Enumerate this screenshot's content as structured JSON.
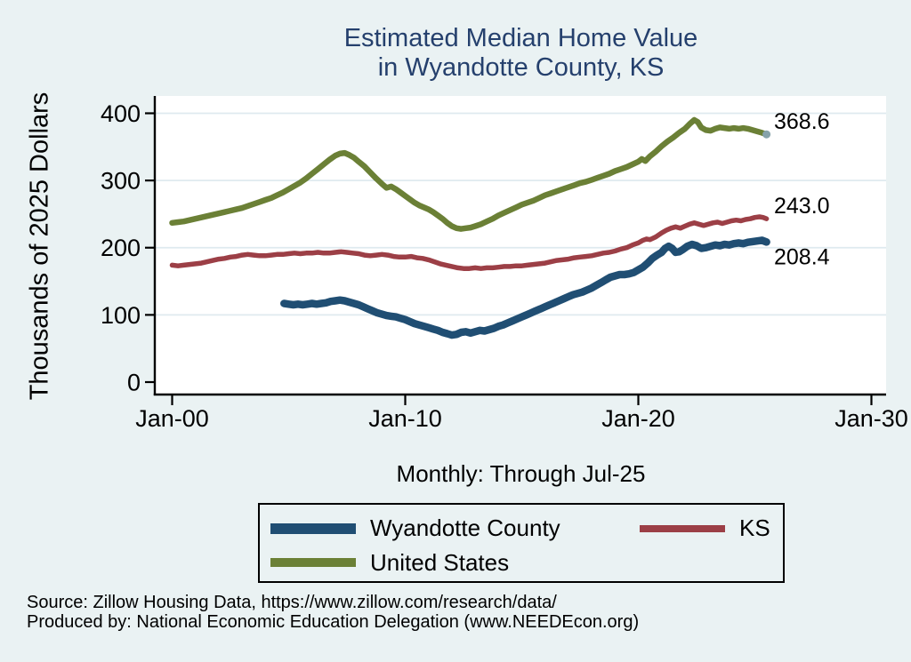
{
  "page": {
    "background": "#eaf2f3",
    "plot_background": "#ffffff",
    "gridline_color": "#dfeaef",
    "title_color": "#25406d"
  },
  "title": {
    "line1": "Estimated Median Home Value",
    "line2": "in Wyandotte County, KS"
  },
  "axes": {
    "y": {
      "title": "Thousands of 2025 Dollars",
      "ticks": [
        0,
        100,
        200,
        300,
        400
      ]
    },
    "x": {
      "subtitle": "Monthly: Through Jul-25",
      "ticks": [
        {
          "year": 2000,
          "label": "Jan-00"
        },
        {
          "year": 2010,
          "label": "Jan-10"
        },
        {
          "year": 2020,
          "label": "Jan-20"
        },
        {
          "year": 2030,
          "label": "Jan-30"
        }
      ]
    }
  },
  "chart_data": {
    "type": "line",
    "title": "Estimated Median Home Value in Wyandotte County, KS",
    "subtitle": "Monthly: Through Jul-25",
    "xlabel": "",
    "ylabel": "Thousands of 2025 Dollars",
    "ylim": [
      0,
      400
    ],
    "xlim_years": [
      2000,
      2030
    ],
    "grid": "horizontal",
    "legend_position": "bottom-box",
    "series": [
      {
        "name": "Wyandotte County",
        "color": "#204e73",
        "width": 8.5,
        "end_label": "208.4",
        "x": [
          2004.8,
          2005,
          2005.2,
          2005.4,
          2005.6,
          2005.8,
          2006,
          2006.2,
          2006.4,
          2006.6,
          2006.8,
          2007,
          2007.2,
          2007.4,
          2007.6,
          2007.8,
          2008,
          2008.2,
          2008.4,
          2008.6,
          2008.8,
          2009,
          2009.2,
          2009.4,
          2009.6,
          2009.8,
          2010,
          2010.2,
          2010.4,
          2010.6,
          2010.8,
          2011,
          2011.2,
          2011.4,
          2011.6,
          2011.8,
          2012,
          2012.2,
          2012.4,
          2012.6,
          2012.8,
          2013,
          2013.2,
          2013.4,
          2013.6,
          2013.8,
          2014,
          2014.2,
          2014.4,
          2014.6,
          2014.8,
          2015,
          2015.2,
          2015.4,
          2015.6,
          2015.8,
          2016,
          2016.2,
          2016.4,
          2016.6,
          2016.8,
          2017,
          2017.2,
          2017.4,
          2017.6,
          2017.8,
          2018,
          2018.2,
          2018.4,
          2018.6,
          2018.8,
          2019,
          2019.2,
          2019.4,
          2019.6,
          2019.8,
          2020,
          2020.2,
          2020.4,
          2020.6,
          2020.8,
          2021,
          2021.15,
          2021.3,
          2021.45,
          2021.6,
          2021.75,
          2021.9,
          2022.1,
          2022.3,
          2022.5,
          2022.7,
          2022.9,
          2023.1,
          2023.3,
          2023.5,
          2023.7,
          2023.9,
          2024.1,
          2024.3,
          2024.5,
          2024.7,
          2024.9,
          2025.1,
          2025.3,
          2025.5
        ],
        "values": [
          117,
          116,
          115,
          116,
          115,
          116,
          117,
          116,
          117,
          118,
          120,
          121,
          122,
          121,
          119,
          117,
          115,
          112,
          109,
          106,
          103,
          101,
          99,
          98,
          97,
          95,
          93,
          90,
          87,
          85,
          83,
          81,
          79,
          77,
          74,
          72,
          70,
          71,
          74,
          75,
          73,
          75,
          77,
          76,
          78,
          80,
          83,
          85,
          88,
          91,
          94,
          97,
          100,
          103,
          106,
          109,
          112,
          115,
          118,
          121,
          124,
          127,
          130,
          132,
          134,
          137,
          140,
          144,
          148,
          152,
          156,
          158,
          160,
          160,
          161,
          163,
          167,
          171,
          177,
          184,
          189,
          193,
          199,
          202,
          199,
          193,
          194,
          197,
          202,
          205,
          203,
          199,
          200,
          202,
          204,
          203,
          205,
          204,
          206,
          207,
          206,
          208,
          209,
          210,
          211,
          208.4
        ]
      },
      {
        "name": "KS",
        "color": "#9c3f46",
        "width": 5.5,
        "end_label": "243.0",
        "x": [
          2000,
          2000.25,
          2000.5,
          2000.75,
          2001,
          2001.25,
          2001.5,
          2001.75,
          2002,
          2002.25,
          2002.5,
          2002.75,
          2003,
          2003.25,
          2003.5,
          2003.75,
          2004,
          2004.25,
          2004.5,
          2004.75,
          2005,
          2005.25,
          2005.5,
          2005.75,
          2006,
          2006.25,
          2006.5,
          2006.75,
          2007,
          2007.25,
          2007.5,
          2007.75,
          2008,
          2008.25,
          2008.5,
          2008.75,
          2009,
          2009.25,
          2009.5,
          2009.75,
          2010,
          2010.25,
          2010.5,
          2010.75,
          2011,
          2011.25,
          2011.5,
          2011.75,
          2012,
          2012.25,
          2012.5,
          2012.75,
          2013,
          2013.25,
          2013.5,
          2013.75,
          2014,
          2014.25,
          2014.5,
          2014.75,
          2015,
          2015.25,
          2015.5,
          2015.75,
          2016,
          2016.25,
          2016.5,
          2016.75,
          2017,
          2017.25,
          2017.5,
          2017.75,
          2018,
          2018.25,
          2018.5,
          2018.75,
          2019,
          2019.25,
          2019.5,
          2019.75,
          2020,
          2020.2,
          2020.35,
          2020.5,
          2020.75,
          2021,
          2021.2,
          2021.4,
          2021.6,
          2021.8,
          2022,
          2022.2,
          2022.4,
          2022.6,
          2022.8,
          2023,
          2023.2,
          2023.4,
          2023.6,
          2023.8,
          2024,
          2024.2,
          2024.4,
          2024.6,
          2024.8,
          2025,
          2025.2,
          2025.35,
          2025.5
        ],
        "values": [
          174,
          173,
          174,
          175,
          176,
          177,
          179,
          181,
          183,
          184,
          186,
          187,
          189,
          190,
          189,
          188,
          188,
          189,
          190,
          190,
          191,
          192,
          191,
          192,
          192,
          193,
          192,
          192,
          193,
          194,
          193,
          192,
          191,
          189,
          188,
          189,
          190,
          189,
          187,
          186,
          186,
          187,
          185,
          184,
          182,
          179,
          176,
          174,
          172,
          170,
          169,
          169,
          170,
          169,
          170,
          170,
          171,
          172,
          172,
          173,
          173,
          174,
          175,
          176,
          177,
          179,
          181,
          182,
          183,
          185,
          186,
          187,
          188,
          190,
          192,
          193,
          195,
          198,
          200,
          204,
          207,
          211,
          213,
          212,
          216,
          222,
          226,
          229,
          231,
          229,
          232,
          235,
          237,
          235,
          233,
          235,
          237,
          238,
          236,
          238,
          240,
          241,
          240,
          242,
          243,
          245,
          246,
          245,
          243
        ]
      },
      {
        "name": "United States",
        "color": "#6b8036",
        "width": 6.5,
        "end_label": "368.6",
        "end_marker_color": "#86a2aa",
        "x": [
          2000,
          2000.25,
          2000.5,
          2000.75,
          2001,
          2001.25,
          2001.5,
          2001.75,
          2002,
          2002.25,
          2002.5,
          2002.75,
          2003,
          2003.25,
          2003.5,
          2003.75,
          2004,
          2004.25,
          2004.5,
          2004.75,
          2005,
          2005.25,
          2005.5,
          2005.75,
          2006,
          2006.25,
          2006.5,
          2006.75,
          2007,
          2007.2,
          2007.4,
          2007.6,
          2007.8,
          2008,
          2008.25,
          2008.5,
          2008.75,
          2009,
          2009.2,
          2009.4,
          2009.6,
          2009.8,
          2010,
          2010.2,
          2010.4,
          2010.6,
          2010.8,
          2011,
          2011.2,
          2011.4,
          2011.6,
          2011.8,
          2012,
          2012.2,
          2012.4,
          2012.6,
          2012.8,
          2013,
          2013.25,
          2013.5,
          2013.75,
          2014,
          2014.25,
          2014.5,
          2014.75,
          2015,
          2015.25,
          2015.5,
          2015.75,
          2016,
          2016.25,
          2016.5,
          2016.75,
          2017,
          2017.25,
          2017.5,
          2017.75,
          2018,
          2018.25,
          2018.5,
          2018.75,
          2019,
          2019.25,
          2019.5,
          2019.75,
          2020,
          2020.15,
          2020.3,
          2020.5,
          2020.75,
          2021,
          2021.25,
          2021.5,
          2021.75,
          2022,
          2022.2,
          2022.4,
          2022.55,
          2022.7,
          2022.9,
          2023.1,
          2023.3,
          2023.5,
          2023.7,
          2023.9,
          2024.1,
          2024.3,
          2024.5,
          2024.7,
          2024.9,
          2025.1,
          2025.3,
          2025.5
        ],
        "values": [
          237,
          238,
          239,
          241,
          243,
          245,
          247,
          249,
          251,
          253,
          255,
          257,
          259,
          262,
          265,
          268,
          271,
          274,
          278,
          282,
          287,
          292,
          297,
          303,
          310,
          317,
          324,
          331,
          337,
          340,
          341,
          338,
          334,
          328,
          321,
          312,
          303,
          295,
          289,
          291,
          287,
          282,
          277,
          272,
          267,
          263,
          260,
          257,
          253,
          248,
          243,
          237,
          232,
          229,
          228,
          229,
          230,
          232,
          235,
          239,
          243,
          248,
          252,
          256,
          260,
          264,
          267,
          270,
          274,
          278,
          281,
          284,
          287,
          290,
          293,
          296,
          298,
          301,
          304,
          307,
          310,
          314,
          317,
          320,
          324,
          328,
          332,
          329,
          336,
          343,
          351,
          358,
          364,
          371,
          377,
          384,
          390,
          387,
          379,
          375,
          374,
          377,
          379,
          378,
          377,
          378,
          377,
          378,
          377,
          375,
          373,
          371,
          368.6
        ]
      }
    ]
  },
  "source": {
    "line1": "Source: Zillow Housing Data, https://www.zillow.com/research/data/",
    "line2": "Produced by: National Economic Education Delegation (www.NEEDEcon.org)"
  }
}
